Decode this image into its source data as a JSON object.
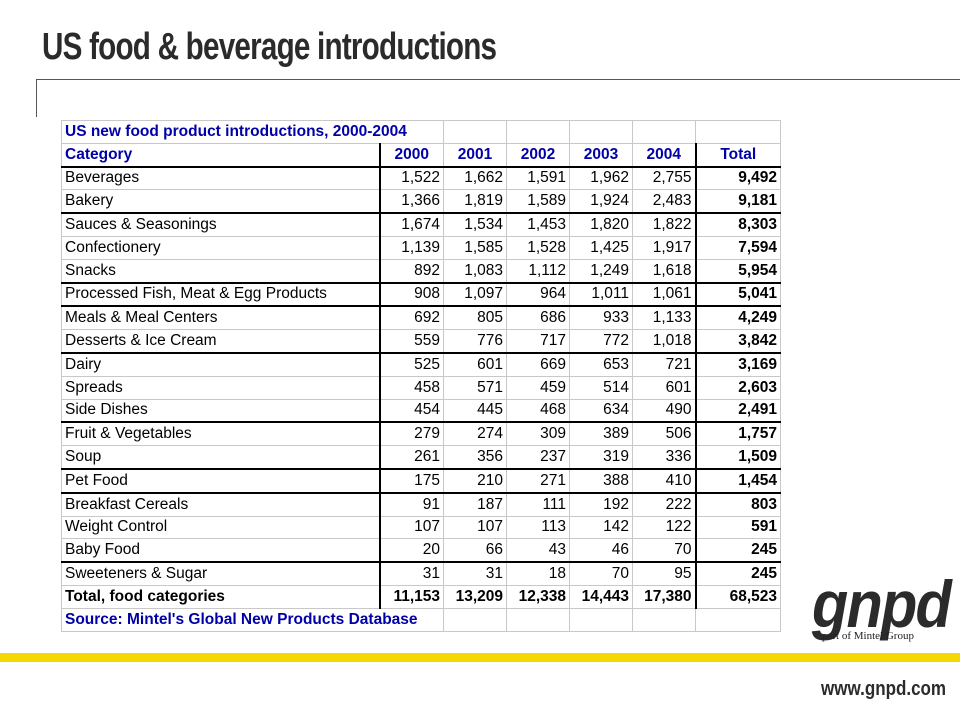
{
  "slide": {
    "title": "US food & beverage introductions",
    "url": "www.gnpd.com",
    "logo": {
      "text": "gnpd",
      "subtitle": "part of Mintel Group",
      "icon": "gnpd-logo"
    },
    "accent_color": "#f5d800",
    "header_color": "#0000a8"
  },
  "table": {
    "title": "US new food product introductions, 2000-2004",
    "category_header": "Category",
    "years": [
      "2000",
      "2001",
      "2002",
      "2003",
      "2004"
    ],
    "total_header": "Total",
    "rows": [
      {
        "category": "Beverages",
        "values": [
          "1,522",
          "1,662",
          "1,591",
          "1,962",
          "2,755"
        ],
        "total": "9,492"
      },
      {
        "category": "Bakery",
        "values": [
          "1,366",
          "1,819",
          "1,589",
          "1,924",
          "2,483"
        ],
        "total": "9,181"
      },
      {
        "category": "Sauces & Seasonings",
        "values": [
          "1,674",
          "1,534",
          "1,453",
          "1,820",
          "1,822"
        ],
        "total": "8,303"
      },
      {
        "category": "Confectionery",
        "values": [
          "1,139",
          "1,585",
          "1,528",
          "1,425",
          "1,917"
        ],
        "total": "7,594"
      },
      {
        "category": "Snacks",
        "values": [
          "892",
          "1,083",
          "1,112",
          "1,249",
          "1,618"
        ],
        "total": "5,954"
      },
      {
        "category": "Processed Fish, Meat & Egg Products",
        "values": [
          "908",
          "1,097",
          "964",
          "1,011",
          "1,061"
        ],
        "total": "5,041"
      },
      {
        "category": "Meals & Meal Centers",
        "values": [
          "692",
          "805",
          "686",
          "933",
          "1,133"
        ],
        "total": "4,249"
      },
      {
        "category": "Desserts & Ice Cream",
        "values": [
          "559",
          "776",
          "717",
          "772",
          "1,018"
        ],
        "total": "3,842"
      },
      {
        "category": "Dairy",
        "values": [
          "525",
          "601",
          "669",
          "653",
          "721"
        ],
        "total": "3,169"
      },
      {
        "category": "Spreads",
        "values": [
          "458",
          "571",
          "459",
          "514",
          "601"
        ],
        "total": "2,603"
      },
      {
        "category": "Side Dishes",
        "values": [
          "454",
          "445",
          "468",
          "634",
          "490"
        ],
        "total": "2,491"
      },
      {
        "category": "Fruit & Vegetables",
        "values": [
          "279",
          "274",
          "309",
          "389",
          "506"
        ],
        "total": "1,757"
      },
      {
        "category": "Soup",
        "values": [
          "261",
          "356",
          "237",
          "319",
          "336"
        ],
        "total": "1,509"
      },
      {
        "category": "Pet Food",
        "values": [
          "175",
          "210",
          "271",
          "388",
          "410"
        ],
        "total": "1,454"
      },
      {
        "category": "Breakfast Cereals",
        "values": [
          "91",
          "187",
          "111",
          "192",
          "222"
        ],
        "total": "803"
      },
      {
        "category": "Weight Control",
        "values": [
          "107",
          "107",
          "113",
          "142",
          "122"
        ],
        "total": "591"
      },
      {
        "category": "Baby Food",
        "values": [
          "20",
          "66",
          "43",
          "46",
          "70"
        ],
        "total": "245"
      },
      {
        "category": "Sweeteners & Sugar",
        "values": [
          "31",
          "31",
          "18",
          "70",
          "95"
        ],
        "total": "245"
      }
    ],
    "total_row": {
      "label": "Total, food categories",
      "values": [
        "11,153",
        "13,209",
        "12,338",
        "14,443",
        "17,380"
      ],
      "total": "68,523"
    },
    "source": "Source: Mintel's Global New Products Database"
  }
}
